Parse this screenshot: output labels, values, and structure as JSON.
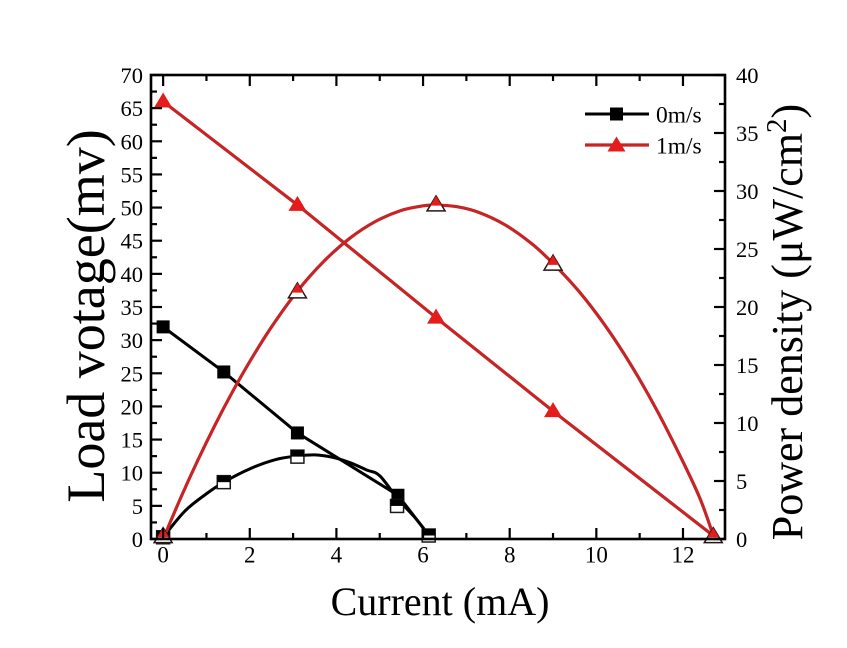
{
  "figure": {
    "background": "#ffffff"
  },
  "chart_data": {
    "type": "line",
    "title": "",
    "xlabel": "Current (mA)",
    "ylabel_left": "Load votage(mv)",
    "ylabel_right": "Power density (μW/cm²)",
    "ylabel_right_main": "Power density (μW/cm",
    "ylabel_right_sup": "2",
    "ylabel_right_end": ")",
    "xlim": [
      -0.28,
      12.97
    ],
    "ylim_left": [
      0,
      70
    ],
    "ylim_right": [
      0,
      40
    ],
    "xticks_major": [
      0,
      2,
      4,
      6,
      8,
      10,
      12
    ],
    "xticks_minor": [
      1,
      3,
      5,
      7,
      9,
      11,
      13
    ],
    "xtick_labels": [
      "0",
      "2",
      "4",
      "6",
      "8",
      "10",
      "12"
    ],
    "yticks_left_major": [
      0,
      5,
      10,
      15,
      20,
      25,
      30,
      35,
      40,
      45,
      50,
      55,
      60,
      65,
      70
    ],
    "ytick_left_labels": [
      "0",
      "5",
      "10",
      "15",
      "20",
      "25",
      "30",
      "35",
      "40",
      "45",
      "50",
      "55",
      "60",
      "65",
      "70"
    ],
    "yticks_left_minor": [
      2.5,
      7.5,
      12.5,
      17.5,
      22.5,
      27.5,
      32.5,
      37.5,
      42.5,
      47.5,
      52.5,
      57.5,
      62.5,
      67.5
    ],
    "yticks_right_major": [
      0,
      5,
      10,
      15,
      20,
      25,
      30,
      35,
      40
    ],
    "ytick_right_labels": [
      "0",
      "5",
      "10",
      "15",
      "20",
      "25",
      "30",
      "35",
      "40"
    ],
    "yticks_right_minor": [
      2.5,
      7.5,
      12.5,
      17.5,
      22.5,
      27.5,
      32.5,
      37.5
    ],
    "grid": false,
    "series": [
      {
        "name": "0m/s load voltage",
        "legend_group": "0m/s",
        "axis": "left",
        "color": "#000000",
        "marker_fill": "#000000",
        "marker": "square-filled",
        "line": "straight",
        "line_width": 3,
        "points": [
          [
            0,
            32
          ],
          [
            1.4,
            25.2
          ],
          [
            3.1,
            16
          ],
          [
            5.42,
            6.6
          ],
          [
            6.13,
            0.6
          ]
        ]
      },
      {
        "name": "0m/s power density",
        "legend_group": "0m/s",
        "axis": "right",
        "color": "#000000",
        "marker_fill": "#000000",
        "marker": "square-halftop",
        "line": "smooth",
        "line_width": 3,
        "points": [
          [
            0,
            0.15
          ],
          [
            1.4,
            4.9
          ],
          [
            3.1,
            7.1
          ],
          [
            5.4,
            2.85
          ],
          [
            6.13,
            0.3
          ]
        ],
        "curve": [
          [
            0,
            0.15
          ],
          [
            0.5,
            2.4
          ],
          [
            1.0,
            3.9
          ],
          [
            1.4,
            4.9
          ],
          [
            2.0,
            6.05
          ],
          [
            2.6,
            6.85
          ],
          [
            3.1,
            7.15
          ],
          [
            3.5,
            7.25
          ],
          [
            3.9,
            7.05
          ],
          [
            4.3,
            6.6
          ],
          [
            4.7,
            5.95
          ],
          [
            5.0,
            5.45
          ],
          [
            5.42,
            3.45
          ],
          [
            5.8,
            1.9
          ],
          [
            6.13,
            0.35
          ]
        ]
      },
      {
        "name": "1m/s load voltage",
        "legend_group": "1m/s",
        "axis": "left",
        "color": "#c52525",
        "marker_fill": "#e41c1c",
        "marker": "triangle-filled",
        "line": "straight",
        "line_width": 3.2,
        "points": [
          [
            0,
            66
          ],
          [
            3.1,
            50.4
          ],
          [
            6.3,
            33.4
          ],
          [
            9.0,
            19.3
          ],
          [
            12.7,
            0.5
          ]
        ]
      },
      {
        "name": "1m/s power density",
        "legend_group": "1m/s",
        "axis": "right",
        "color": "#c52525",
        "marker_fill": "#e41c1c",
        "marker": "triangle-halftop",
        "line": "smooth",
        "line_width": 3.2,
        "points": [
          [
            0,
            0.2
          ],
          [
            3.1,
            21.3
          ],
          [
            6.3,
            28.8
          ],
          [
            9.0,
            23.7
          ],
          [
            12.7,
            0.2
          ]
        ],
        "curve": [
          [
            0,
            0.0
          ],
          [
            0.4,
            3.5
          ],
          [
            0.8,
            6.78
          ],
          [
            1.2,
            9.84
          ],
          [
            1.6,
            12.68
          ],
          [
            2.0,
            15.3
          ],
          [
            2.5,
            18.27
          ],
          [
            3.1,
            21.37
          ],
          [
            3.7,
            23.9
          ],
          [
            4.3,
            25.9
          ],
          [
            4.9,
            27.37
          ],
          [
            5.5,
            28.33
          ],
          [
            6.0,
            28.72
          ],
          [
            6.3,
            28.79
          ],
          [
            6.8,
            28.64
          ],
          [
            7.3,
            28.14
          ],
          [
            7.9,
            27.07
          ],
          [
            8.5,
            25.48
          ],
          [
            9.0,
            23.76
          ],
          [
            9.6,
            21.34
          ],
          [
            10.2,
            18.42
          ],
          [
            10.8,
            15.0
          ],
          [
            11.4,
            11.08
          ],
          [
            12.0,
            6.66
          ],
          [
            12.4,
            3.43
          ],
          [
            12.7,
            0.3
          ]
        ]
      }
    ],
    "legend": {
      "position": "top-right-inside",
      "frame": false,
      "entries": [
        {
          "label": "0m/s",
          "color": "#000000",
          "marker_fill": "#000000",
          "marker": "square-filled"
        },
        {
          "label": "1m/s",
          "color": "#c52525",
          "marker_fill": "#e41c1c",
          "marker": "triangle-filled"
        }
      ]
    }
  }
}
